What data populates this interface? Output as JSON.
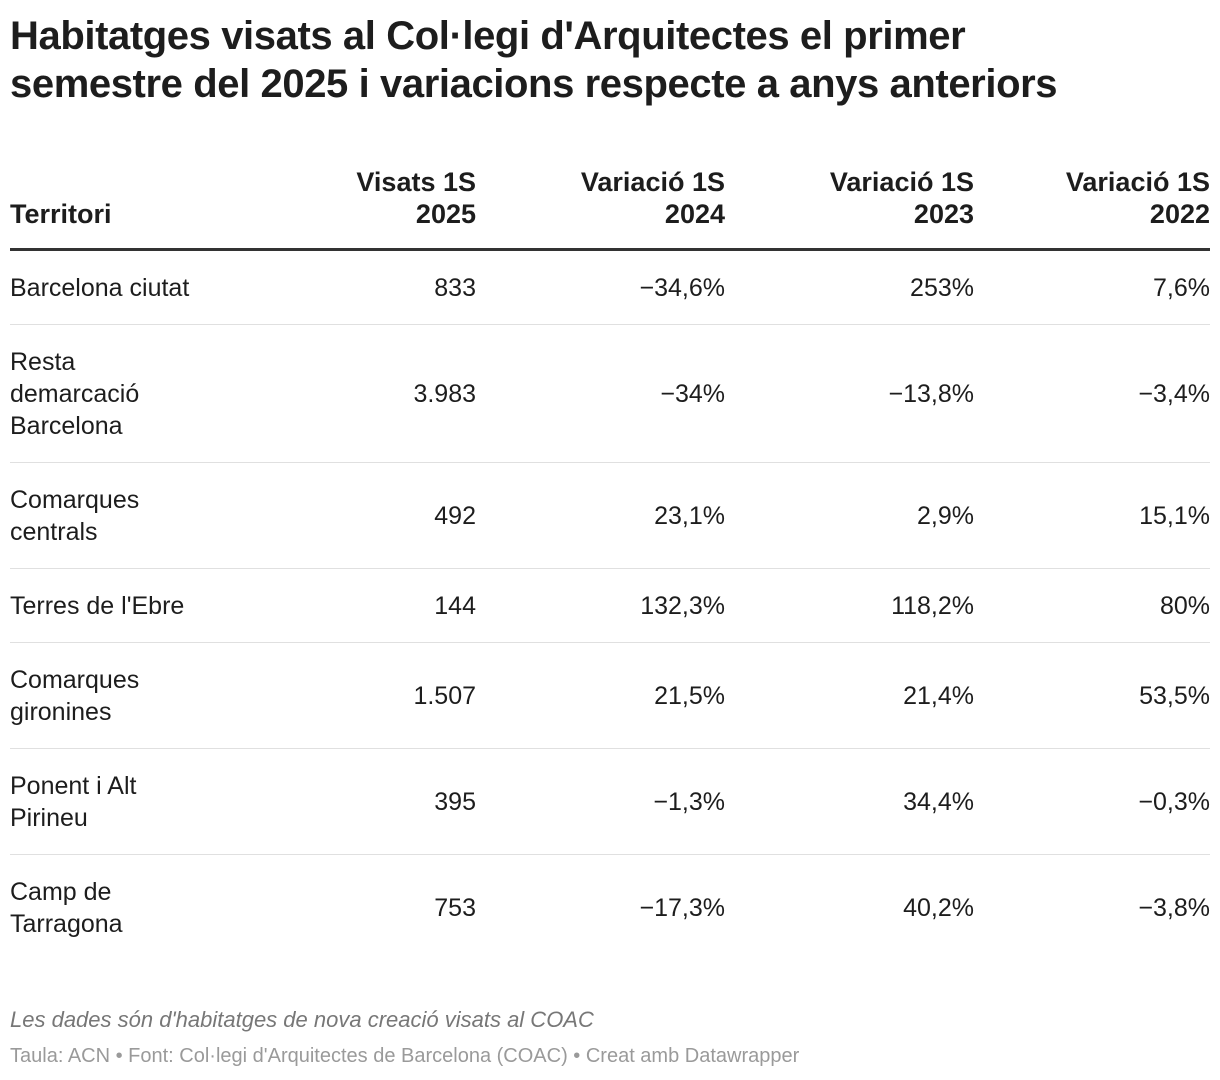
{
  "title_line1": "Habitatges visats al Col·legi d'Arquitectes el primer",
  "title_line2": "semestre del 2025 i variacions respecte a anys anteriors",
  "table": {
    "headers": [
      {
        "line1": "",
        "line2": "Territori"
      },
      {
        "line1": "Visats 1S",
        "line2": "2025"
      },
      {
        "line1": "Variació 1S",
        "line2": "2024"
      },
      {
        "line1": "Variació 1S",
        "line2": "2023"
      },
      {
        "line1": "Variació 1S",
        "line2": "2022"
      }
    ],
    "rows": [
      {
        "lines": [
          "Barcelona ciutat"
        ],
        "visats": "833",
        "v2024": "−34,6%",
        "v2023": "253%",
        "v2022": "7,6%"
      },
      {
        "lines": [
          "Resta",
          "demarcació",
          "Barcelona"
        ],
        "visats": "3.983",
        "v2024": "−34%",
        "v2023": "−13,8%",
        "v2022": "−3,4%"
      },
      {
        "lines": [
          "Comarques",
          "centrals"
        ],
        "visats": "492",
        "v2024": "23,1%",
        "v2023": "2,9%",
        "v2022": "15,1%"
      },
      {
        "lines": [
          "Terres de l'Ebre"
        ],
        "visats": "144",
        "v2024": "132,3%",
        "v2023": "118,2%",
        "v2022": "80%"
      },
      {
        "lines": [
          "Comarques",
          "gironines"
        ],
        "visats": "1.507",
        "v2024": "21,5%",
        "v2023": "21,4%",
        "v2022": "53,5%"
      },
      {
        "lines": [
          "Ponent i Alt",
          "Pirineu"
        ],
        "visats": "395",
        "v2024": "−1,3%",
        "v2023": "34,4%",
        "v2022": "−0,3%"
      },
      {
        "lines": [
          "Camp de",
          "Tarragona"
        ],
        "visats": "753",
        "v2024": "−17,3%",
        "v2023": "40,2%",
        "v2022": "−3,8%"
      }
    ]
  },
  "notes": "Les dades són d'habitatges de nova creació visats al COAC",
  "source": "Taula: ACN • Font: Col·legi d'Arquitectes de Barcelona (COAC) • Creat amb Datawrapper",
  "colors": {
    "text": "#1d1d1d",
    "header_rule": "#333333",
    "row_rule": "#e0e0e0",
    "notes": "#777777",
    "source": "#9a9a9a"
  }
}
